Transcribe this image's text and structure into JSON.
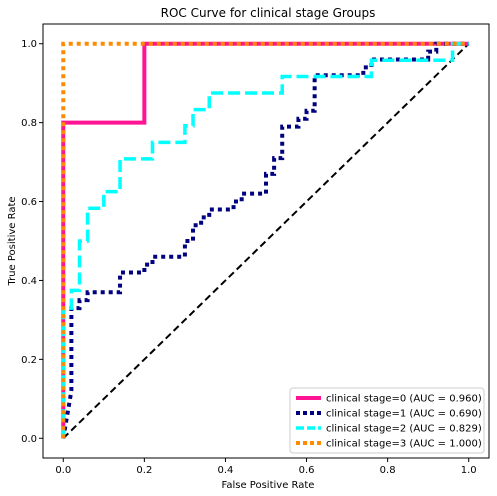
{
  "chart_data": {
    "type": "line",
    "title": "ROC Curve for clinical stage Groups",
    "xlabel": "False Positive Rate",
    "ylabel": "True Positive Rate",
    "xlim": [
      -0.05,
      1.05
    ],
    "ylim": [
      -0.05,
      1.05
    ],
    "xticks": [
      "0.0",
      "0.2",
      "0.4",
      "0.6",
      "0.8",
      "1.0"
    ],
    "yticks": [
      "0.0",
      "0.2",
      "0.4",
      "0.6",
      "0.8",
      "1.0"
    ],
    "grid": false,
    "legend_position": "lower-right",
    "diagonal": {
      "x": [
        0,
        1
      ],
      "y": [
        0,
        1
      ],
      "color": "#000000",
      "style": "dashed"
    },
    "series": [
      {
        "name": "clinical stage=0 (AUC = 0.960)",
        "color": "#ff1493",
        "style": "solid",
        "x": [
          0,
          0,
          0.2,
          0.2,
          1
        ],
        "y": [
          0,
          0.8,
          0.8,
          1.0,
          1.0
        ]
      },
      {
        "name": "clinical stage=1 (AUC = 0.690)",
        "color": "#000080",
        "style": "dotted",
        "x": [
          0,
          0.02,
          0.02,
          0.04,
          0.04,
          0.06,
          0.06,
          0.14,
          0.14,
          0.2,
          0.2,
          0.22,
          0.22,
          0.3,
          0.3,
          0.32,
          0.32,
          0.34,
          0.34,
          0.36,
          0.36,
          0.42,
          0.42,
          0.44,
          0.44,
          0.5,
          0.5,
          0.52,
          0.52,
          0.54,
          0.54,
          0.58,
          0.58,
          0.6,
          0.6,
          0.62,
          0.62,
          0.74,
          0.74,
          0.76,
          0.76,
          0.9,
          0.9,
          0.92,
          0.92,
          1.0
        ],
        "y": [
          0,
          0.12,
          0.33,
          0.33,
          0.35,
          0.35,
          0.37,
          0.37,
          0.42,
          0.42,
          0.44,
          0.44,
          0.46,
          0.46,
          0.5,
          0.5,
          0.54,
          0.54,
          0.56,
          0.56,
          0.58,
          0.58,
          0.6,
          0.6,
          0.62,
          0.62,
          0.67,
          0.67,
          0.71,
          0.71,
          0.79,
          0.79,
          0.81,
          0.81,
          0.83,
          0.83,
          0.92,
          0.92,
          0.94,
          0.94,
          0.96,
          0.96,
          0.98,
          0.98,
          1.0,
          1.0
        ]
      },
      {
        "name": "clinical stage=2 (AUC = 0.829)",
        "color": "#00ffff",
        "style": "dashed",
        "x": [
          0,
          0,
          0.02,
          0.02,
          0.04,
          0.04,
          0.06,
          0.06,
          0.1,
          0.1,
          0.14,
          0.14,
          0.22,
          0.22,
          0.3,
          0.3,
          0.32,
          0.32,
          0.36,
          0.36,
          0.54,
          0.54,
          0.76,
          0.76,
          0.96,
          0.96,
          1.0
        ],
        "y": [
          0,
          0.33,
          0.33,
          0.375,
          0.375,
          0.5,
          0.5,
          0.583,
          0.583,
          0.625,
          0.625,
          0.708,
          0.708,
          0.75,
          0.75,
          0.792,
          0.792,
          0.833,
          0.833,
          0.875,
          0.875,
          0.917,
          0.917,
          0.958,
          0.958,
          1.0,
          1.0
        ]
      },
      {
        "name": "clinical stage=3 (AUC = 1.000)",
        "color": "#ff8c00",
        "style": "dotted",
        "x": [
          0,
          0,
          1
        ],
        "y": [
          0,
          1.0,
          1.0
        ]
      }
    ]
  }
}
